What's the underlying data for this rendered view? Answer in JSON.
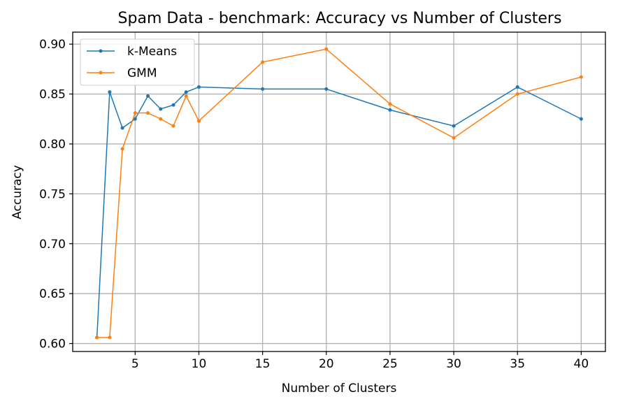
{
  "chart_data": {
    "type": "line",
    "title": "Spam Data - benchmark: Accuracy vs Number of Clusters",
    "xlabel": "Number of Clusters",
    "ylabel": "Accuracy",
    "xlim": [
      0.1,
      41.9
    ],
    "ylim": [
      0.592,
      0.912
    ],
    "xticks": [
      5,
      10,
      15,
      20,
      25,
      30,
      35,
      40
    ],
    "yticks": [
      0.6,
      0.65,
      0.7,
      0.75,
      0.8,
      0.85,
      0.9
    ],
    "ytick_labels": [
      "0.60",
      "0.65",
      "0.70",
      "0.75",
      "0.80",
      "0.85",
      "0.90"
    ],
    "grid": true,
    "legend_position": "upper left",
    "x": [
      2,
      3,
      4,
      5,
      6,
      7,
      8,
      9,
      10,
      15,
      20,
      25,
      30,
      35,
      40
    ],
    "series": [
      {
        "name": "k-Means",
        "color": "#1f77b4",
        "values": [
          0.606,
          0.852,
          0.816,
          0.825,
          0.848,
          0.835,
          0.839,
          0.852,
          0.857,
          0.855,
          0.855,
          0.834,
          0.818,
          0.857,
          0.825
        ]
      },
      {
        "name": "GMM",
        "color": "#ff7f0e",
        "values": [
          0.606,
          0.606,
          0.795,
          0.831,
          0.831,
          0.825,
          0.818,
          0.848,
          0.823,
          0.882,
          0.895,
          0.84,
          0.806,
          0.85,
          0.867
        ]
      }
    ]
  }
}
